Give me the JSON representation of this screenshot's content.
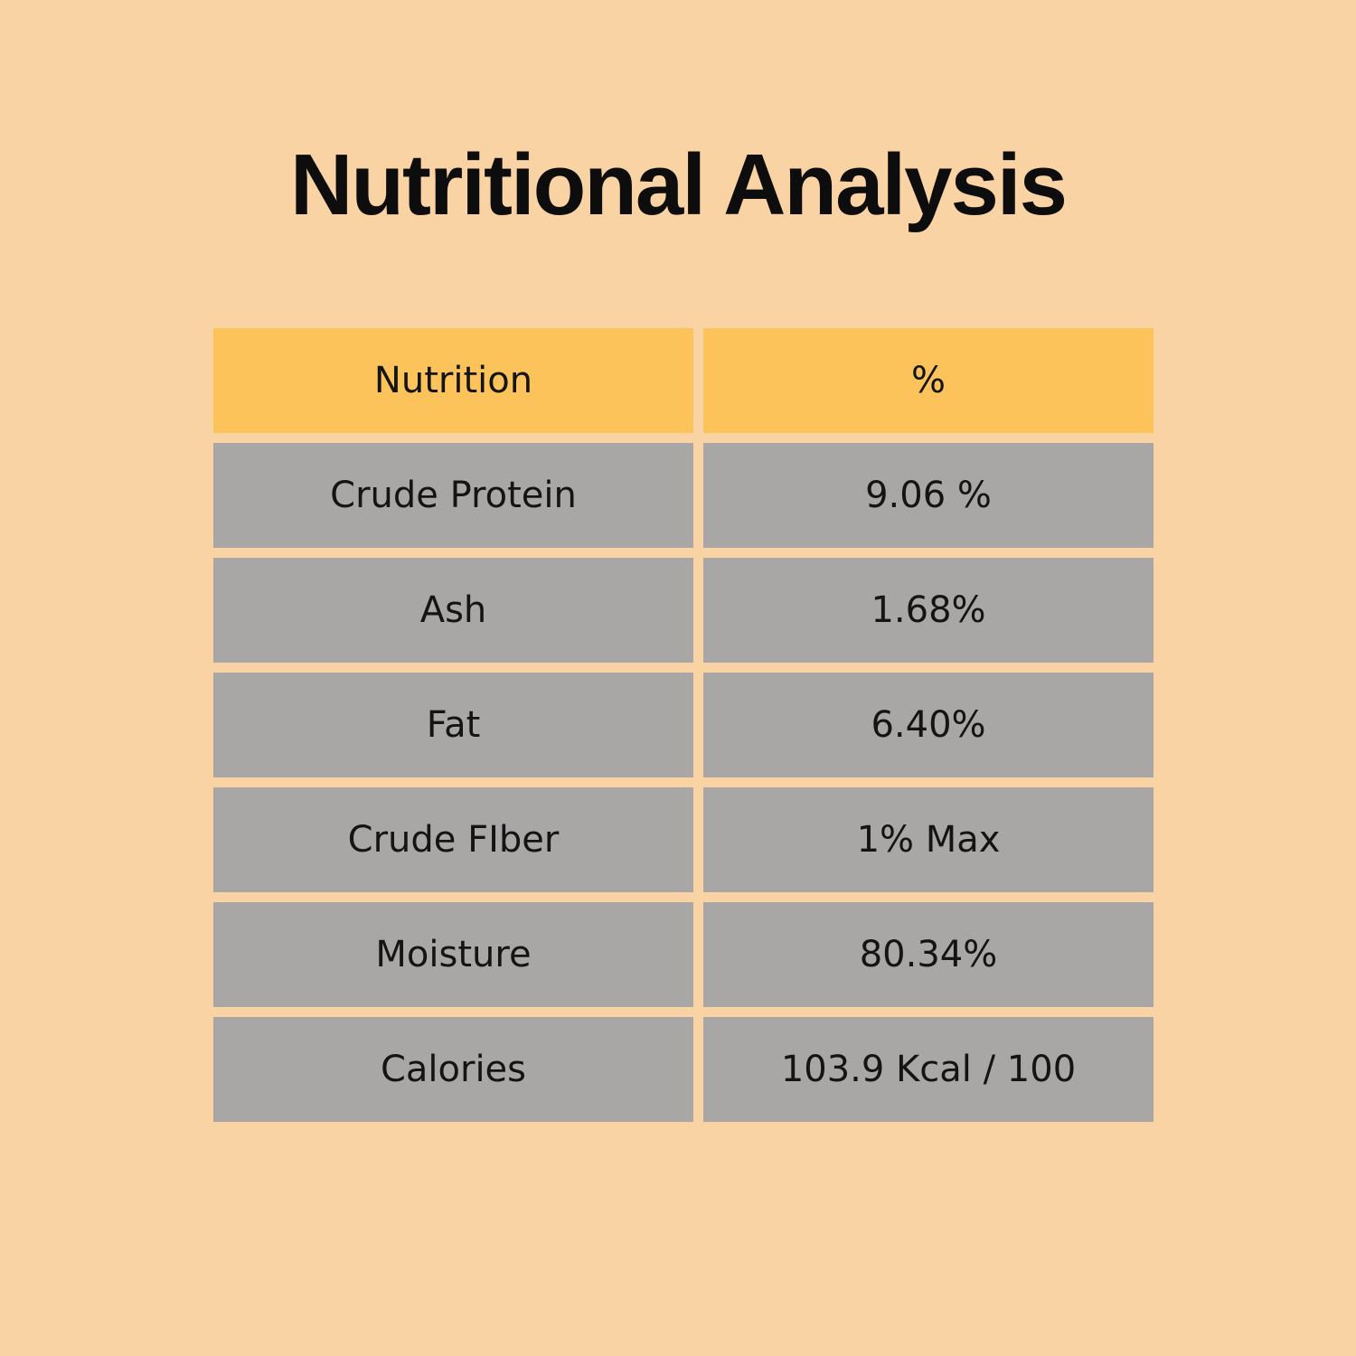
{
  "page": {
    "background": "#FAD3A5",
    "text_color": "#141414"
  },
  "title": "Nutritional Analysis",
  "table": {
    "header": {
      "col1": "Nutrition",
      "col2": "%"
    },
    "colors": {
      "header_bg": "#FCC35B",
      "row_bg": "#A8A7A5"
    },
    "rows": [
      {
        "nutrition": "Crude Protein",
        "value": "9.06 %"
      },
      {
        "nutrition": "Ash",
        "value": "1.68%"
      },
      {
        "nutrition": "Fat",
        "value": "6.40%"
      },
      {
        "nutrition": "Crude FIber",
        "value": "1% Max"
      },
      {
        "nutrition": "Moisture",
        "value": "80.34%"
      },
      {
        "nutrition": "Calories",
        "value": "103.9 Kcal / 100"
      }
    ]
  },
  "chart_data": {
    "type": "table",
    "title": "Nutritional Analysis",
    "columns": [
      "Nutrition",
      "%"
    ],
    "rows": [
      [
        "Crude Protein",
        "9.06 %"
      ],
      [
        "Ash",
        "1.68%"
      ],
      [
        "Fat",
        "6.40%"
      ],
      [
        "Crude FIber",
        "1% Max"
      ],
      [
        "Moisture",
        "80.34%"
      ],
      [
        "Calories",
        "103.9 Kcal / 100"
      ]
    ]
  }
}
